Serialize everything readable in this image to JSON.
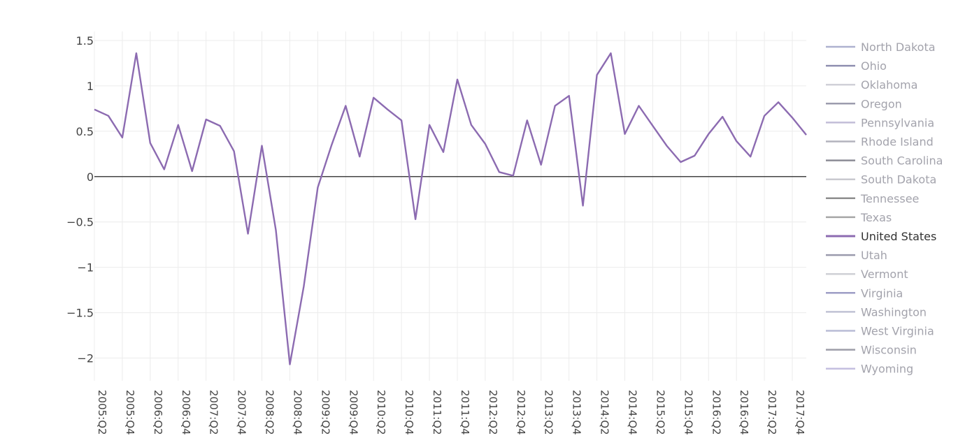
{
  "chart_data": {
    "type": "line",
    "title": "",
    "xlabel": "",
    "ylabel": "",
    "ylim": [
      -2.25,
      1.6
    ],
    "yticks": [
      1.5,
      1,
      0.5,
      0,
      -0.5,
      -1,
      -1.5,
      -2
    ],
    "ytick_labels": [
      "1.5",
      "1",
      "0.5",
      "0",
      "−0.5",
      "−1",
      "−1.5",
      "−2"
    ],
    "x": [
      "2005:Q2",
      "2005:Q3",
      "2005:Q4",
      "2006:Q1",
      "2006:Q2",
      "2006:Q3",
      "2006:Q4",
      "2007:Q1",
      "2007:Q2",
      "2007:Q3",
      "2007:Q4",
      "2008:Q1",
      "2008:Q2",
      "2008:Q3",
      "2008:Q4",
      "2009:Q1",
      "2009:Q2",
      "2009:Q3",
      "2009:Q4",
      "2010:Q1",
      "2010:Q2",
      "2010:Q3",
      "2010:Q4",
      "2011:Q1",
      "2011:Q2",
      "2011:Q3",
      "2011:Q4",
      "2012:Q1",
      "2012:Q2",
      "2012:Q3",
      "2012:Q4",
      "2013:Q1",
      "2013:Q2",
      "2013:Q3",
      "2013:Q4",
      "2014:Q1",
      "2014:Q2",
      "2014:Q3",
      "2014:Q4",
      "2015:Q1",
      "2015:Q2",
      "2015:Q3",
      "2015:Q4",
      "2016:Q1",
      "2016:Q2",
      "2016:Q3",
      "2016:Q4",
      "2017:Q1",
      "2017:Q2",
      "2017:Q3",
      "2017:Q4",
      "2018:Q1"
    ],
    "xtick_labels": [
      "2005:Q2",
      "2005:Q4",
      "2006:Q2",
      "2006:Q4",
      "2007:Q2",
      "2007:Q4",
      "2008:Q2",
      "2008:Q4",
      "2009:Q2",
      "2009:Q4",
      "2010:Q2",
      "2010:Q4",
      "2011:Q2",
      "2011:Q4",
      "2012:Q2",
      "2012:Q4",
      "2013:Q2",
      "2013:Q4",
      "2014:Q2",
      "2014:Q4",
      "2015:Q2",
      "2015:Q4",
      "2016:Q2",
      "2016:Q4",
      "2017:Q2",
      "2017:Q4"
    ],
    "grid": true,
    "legend_position": "right",
    "series": [
      {
        "name": "United States",
        "color": "#8c6bb1",
        "values": [
          0.74,
          0.67,
          0.43,
          1.36,
          0.37,
          0.08,
          0.57,
          0.06,
          0.63,
          0.56,
          0.28,
          -0.63,
          0.34,
          -0.59,
          -2.07,
          -1.21,
          -0.12,
          0.35,
          0.78,
          0.22,
          0.87,
          0.74,
          0.62,
          -0.47,
          0.57,
          0.27,
          1.07,
          0.57,
          0.36,
          0.05,
          0.01,
          0.62,
          0.13,
          0.78,
          0.89,
          -0.32,
          1.12,
          1.36,
          0.47,
          0.78,
          0.56,
          0.34,
          0.16,
          0.23,
          0.47,
          0.66,
          0.39,
          0.22,
          0.67,
          0.82,
          0.65,
          0.46
        ]
      }
    ],
    "legend": [
      {
        "name": "North Dakota",
        "color": "#aeb1cf",
        "highlighted": false
      },
      {
        "name": "Ohio",
        "color": "#8f8fb0",
        "highlighted": false
      },
      {
        "name": "Oklahoma",
        "color": "#d0d0d8",
        "highlighted": false
      },
      {
        "name": "Oregon",
        "color": "#9c9cae",
        "highlighted": false
      },
      {
        "name": "Pennsylvania",
        "color": "#c2bdd8",
        "highlighted": false
      },
      {
        "name": "Rhode Island",
        "color": "#b3b3bd",
        "highlighted": false
      },
      {
        "name": "South Carolina",
        "color": "#8c8c96",
        "highlighted": false
      },
      {
        "name": "South Dakota",
        "color": "#c9c9cf",
        "highlighted": false
      },
      {
        "name": "Tennessee",
        "color": "#8e8e8e",
        "highlighted": false
      },
      {
        "name": "Texas",
        "color": "#a6a6a6",
        "highlighted": false
      },
      {
        "name": "United States",
        "color": "#8c6bb1",
        "highlighted": true
      },
      {
        "name": "Utah",
        "color": "#9a9aac",
        "highlighted": false
      },
      {
        "name": "Vermont",
        "color": "#cfd0d6",
        "highlighted": false
      },
      {
        "name": "Virginia",
        "color": "#9e9ec6",
        "highlighted": false
      },
      {
        "name": "Washington",
        "color": "#c0c2d4",
        "highlighted": false
      },
      {
        "name": "West Virginia",
        "color": "#b8bbd6",
        "highlighted": false
      },
      {
        "name": "Wisconsin",
        "color": "#9d9da8",
        "highlighted": false
      },
      {
        "name": "Wyoming",
        "color": "#c4bfe0",
        "highlighted": false
      }
    ]
  }
}
